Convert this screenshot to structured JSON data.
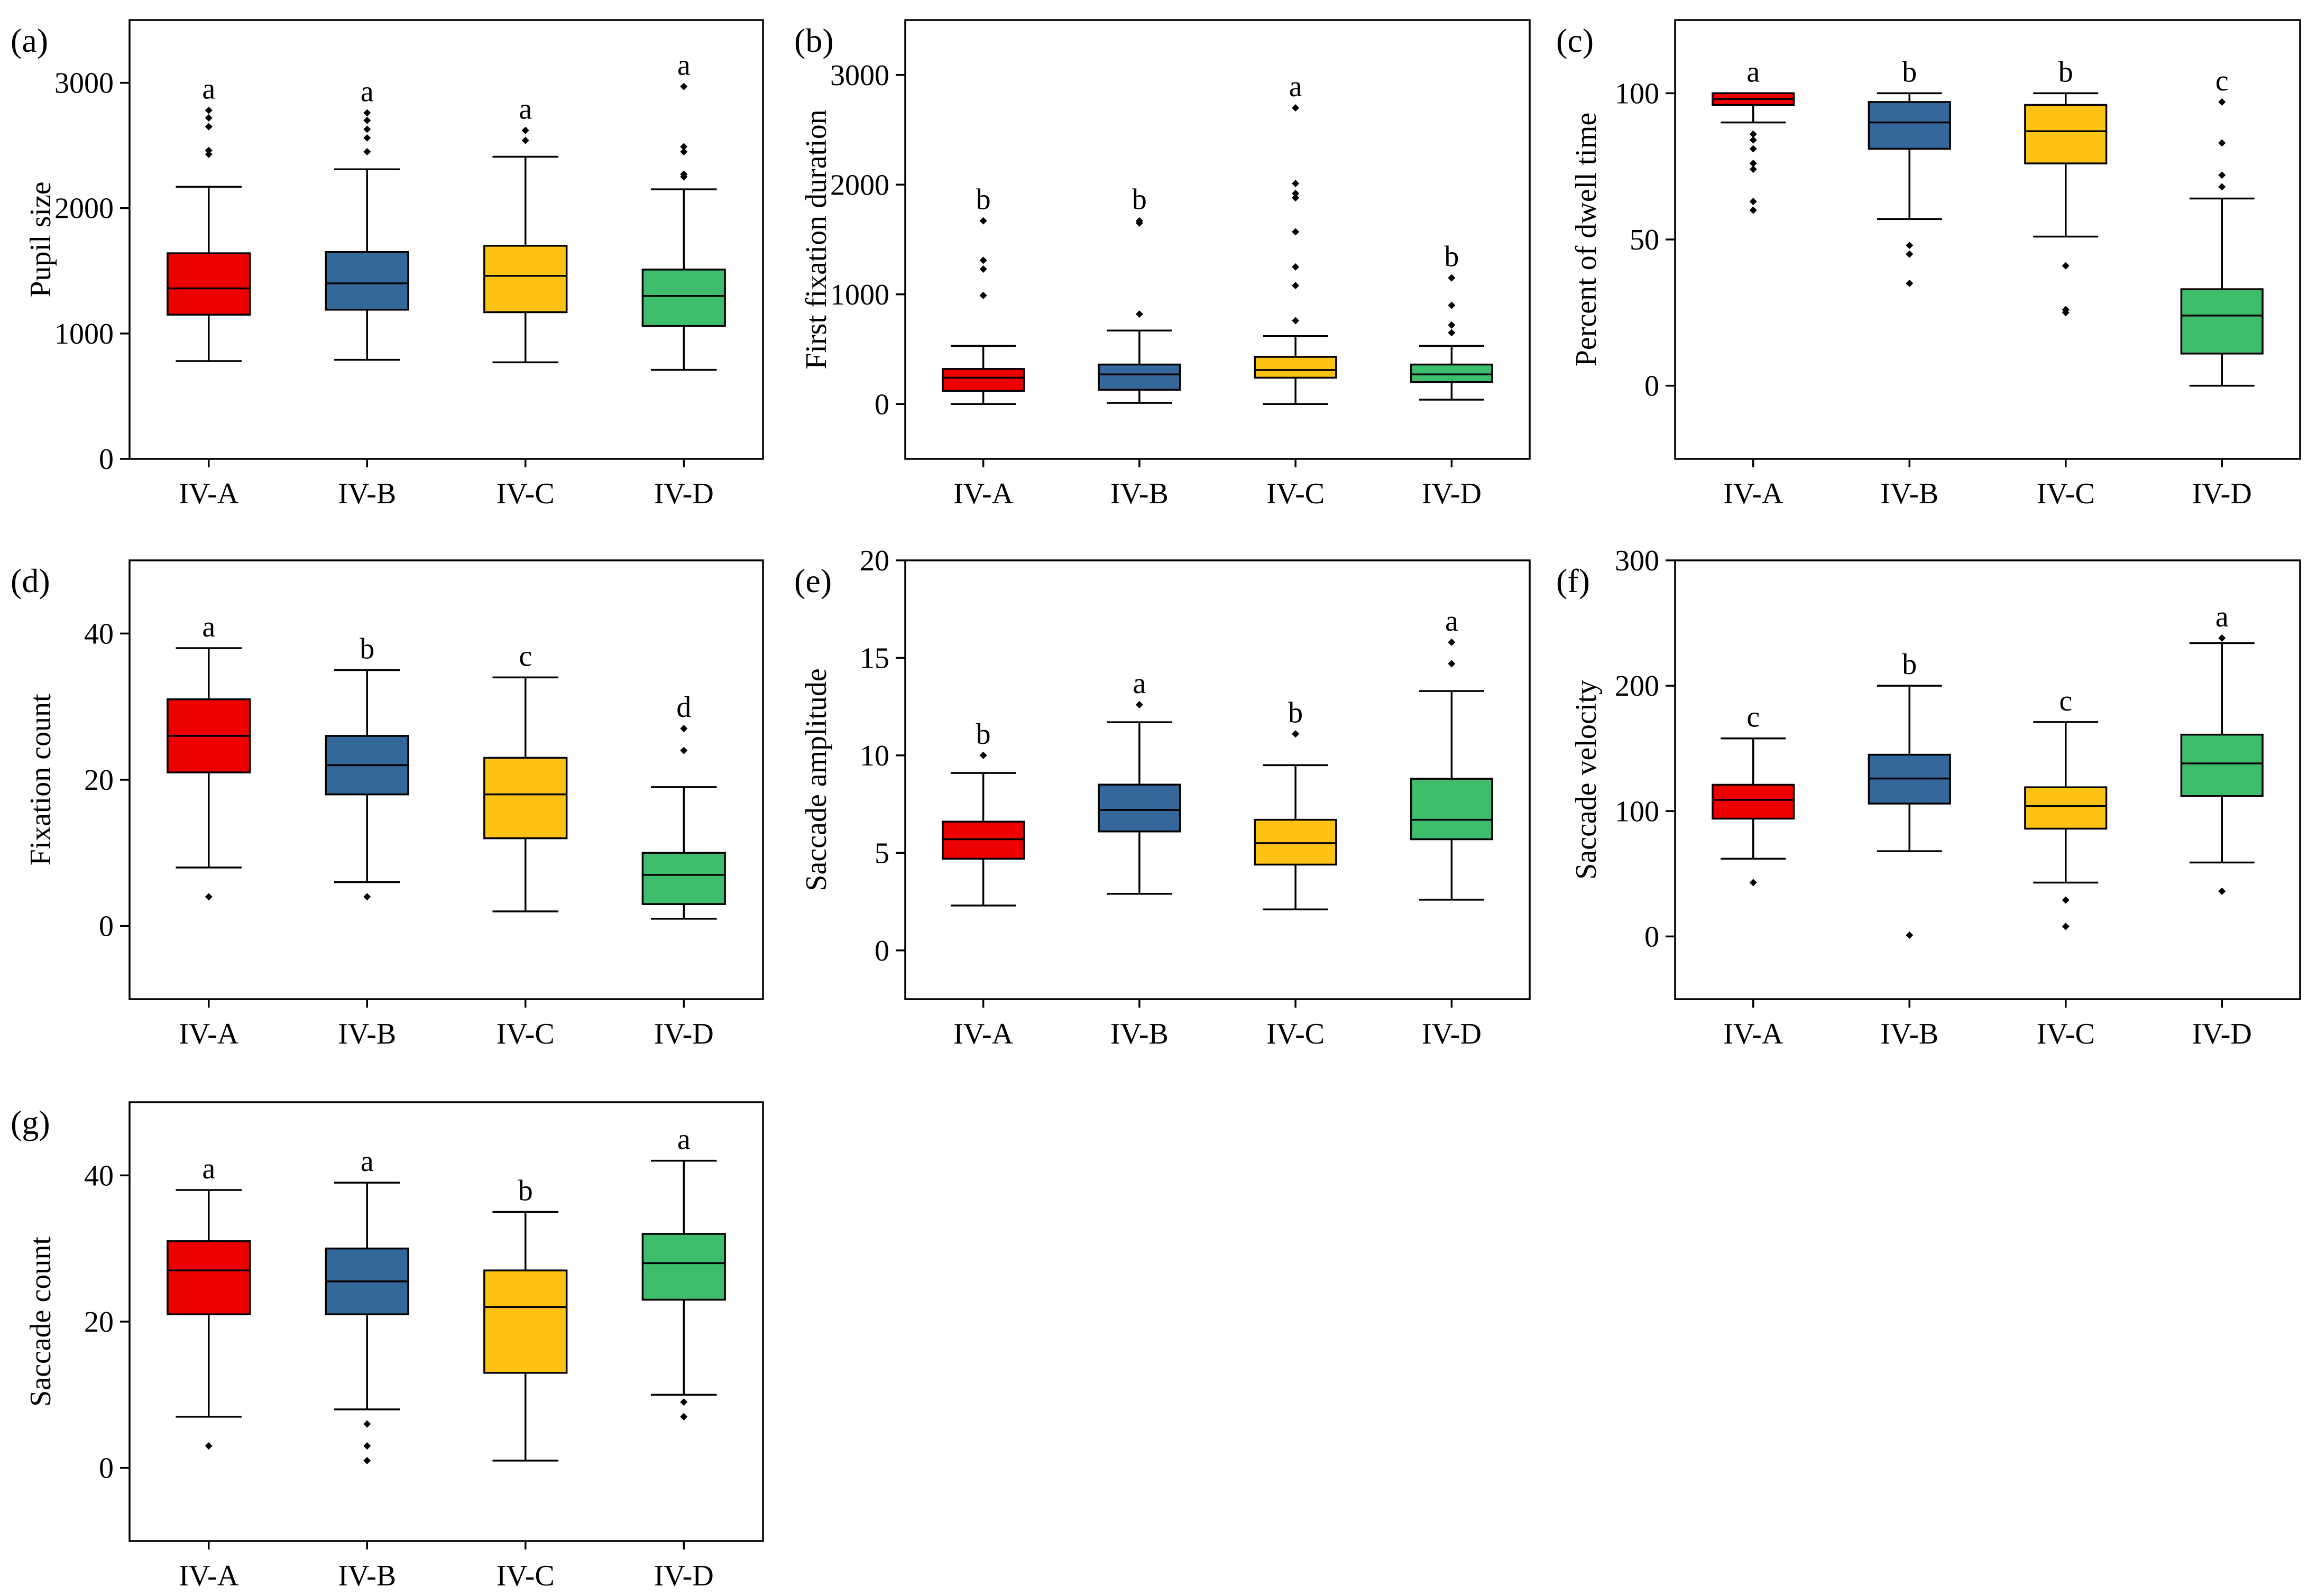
{
  "colors": {
    "IV-A": "#ee0000",
    "IV-B": "#35689a",
    "IV-C": "#fec214",
    "IV-D": "#3ebd6c"
  },
  "chart_data": [
    {
      "type": "box",
      "panel_label": "(a)",
      "ylabel": "Pupil size",
      "categories": [
        "IV-A",
        "IV-B",
        "IV-C",
        "IV-D"
      ],
      "ylim": [
        0,
        3500
      ],
      "yticks": [
        0,
        1000,
        2000,
        3000
      ],
      "boxes": [
        {
          "category": "IV-A",
          "min": 780,
          "q1": 1150,
          "median": 1360,
          "q3": 1640,
          "max": 2170,
          "outliers": [
            2430,
            2460,
            2650,
            2720,
            2780
          ],
          "sig": "a"
        },
        {
          "category": "IV-B",
          "min": 790,
          "q1": 1190,
          "median": 1400,
          "q3": 1650,
          "max": 2310,
          "outliers": [
            2450,
            2560,
            2630,
            2700,
            2760
          ],
          "sig": "a"
        },
        {
          "category": "IV-C",
          "min": 770,
          "q1": 1170,
          "median": 1460,
          "q3": 1700,
          "max": 2410,
          "outliers": [
            2540,
            2620
          ],
          "sig": "a"
        },
        {
          "category": "IV-D",
          "min": 710,
          "q1": 1060,
          "median": 1300,
          "q3": 1510,
          "max": 2150,
          "outliers": [
            2250,
            2270,
            2450,
            2490,
            2970
          ],
          "sig": "a"
        }
      ]
    },
    {
      "type": "box",
      "panel_label": "(b)",
      "ylabel": "First fixation duration",
      "categories": [
        "IV-A",
        "IV-B",
        "IV-C",
        "IV-D"
      ],
      "ylim": [
        -500,
        3500
      ],
      "yticks": [
        0,
        1000,
        2000,
        3000
      ],
      "boxes": [
        {
          "category": "IV-A",
          "min": 0,
          "q1": 120,
          "median": 240,
          "q3": 320,
          "max": 530,
          "outliers": [
            990,
            1230,
            1310,
            1670
          ],
          "sig": "b"
        },
        {
          "category": "IV-B",
          "min": 10,
          "q1": 130,
          "median": 270,
          "q3": 360,
          "max": 670,
          "outliers": [
            820,
            1650,
            1670
          ],
          "sig": "b"
        },
        {
          "category": "IV-C",
          "min": 0,
          "q1": 240,
          "median": 310,
          "q3": 430,
          "max": 620,
          "outliers": [
            760,
            1080,
            1250,
            1570,
            1880,
            1920,
            2010,
            2700
          ],
          "sig": "a"
        },
        {
          "category": "IV-D",
          "min": 40,
          "q1": 200,
          "median": 270,
          "q3": 360,
          "max": 530,
          "outliers": [
            650,
            720,
            900,
            1150
          ],
          "sig": "b"
        }
      ]
    },
    {
      "type": "box",
      "panel_label": "(c)",
      "ylabel": "Percent of dwell time",
      "categories": [
        "IV-A",
        "IV-B",
        "IV-C",
        "IV-D"
      ],
      "ylim": [
        -25,
        125
      ],
      "yticks": [
        0,
        50,
        100
      ],
      "boxes": [
        {
          "category": "IV-A",
          "min": 90,
          "q1": 96,
          "median": 98,
          "q3": 100,
          "max": 100,
          "outliers": [
            60,
            63,
            74,
            76,
            81,
            84,
            86
          ],
          "sig": "a"
        },
        {
          "category": "IV-B",
          "min": 57,
          "q1": 81,
          "median": 90,
          "q3": 97,
          "max": 100,
          "outliers": [
            35,
            45,
            48
          ],
          "sig": "b"
        },
        {
          "category": "IV-C",
          "min": 51,
          "q1": 76,
          "median": 87,
          "q3": 96,
          "max": 100,
          "outliers": [
            25,
            26,
            41
          ],
          "sig": "b"
        },
        {
          "category": "IV-D",
          "min": 0,
          "q1": 11,
          "median": 24,
          "q3": 33,
          "max": 64,
          "outliers": [
            68,
            72,
            83,
            97
          ],
          "sig": "c"
        }
      ]
    },
    {
      "type": "box",
      "panel_label": "(d)",
      "ylabel": "Fixation count",
      "categories": [
        "IV-A",
        "IV-B",
        "IV-C",
        "IV-D"
      ],
      "ylim": [
        -10,
        50
      ],
      "yticks": [
        0,
        20,
        40
      ],
      "boxes": [
        {
          "category": "IV-A",
          "min": 8,
          "q1": 21,
          "median": 26,
          "q3": 31,
          "max": 38,
          "outliers": [
            4
          ],
          "sig": "a"
        },
        {
          "category": "IV-B",
          "min": 6,
          "q1": 18,
          "median": 22,
          "q3": 26,
          "max": 35,
          "outliers": [
            4
          ],
          "sig": "b"
        },
        {
          "category": "IV-C",
          "min": 2,
          "q1": 12,
          "median": 18,
          "q3": 23,
          "max": 34,
          "outliers": [],
          "sig": "c"
        },
        {
          "category": "IV-D",
          "min": 1,
          "q1": 3,
          "median": 7,
          "q3": 10,
          "max": 19,
          "outliers": [
            24,
            27
          ],
          "sig": "d"
        }
      ]
    },
    {
      "type": "box",
      "panel_label": "(e)",
      "ylabel": "Saccade amplitude",
      "categories": [
        "IV-A",
        "IV-B",
        "IV-C",
        "IV-D"
      ],
      "ylim": [
        -2.5,
        20
      ],
      "yticks": [
        0,
        5,
        10,
        15,
        20
      ],
      "boxes": [
        {
          "category": "IV-A",
          "min": 2.3,
          "q1": 4.7,
          "median": 5.7,
          "q3": 6.6,
          "max": 9.1,
          "outliers": [
            10.0
          ],
          "sig": "b"
        },
        {
          "category": "IV-B",
          "min": 2.9,
          "q1": 6.1,
          "median": 7.2,
          "q3": 8.5,
          "max": 11.7,
          "outliers": [
            12.6
          ],
          "sig": "a"
        },
        {
          "category": "IV-C",
          "min": 2.1,
          "q1": 4.4,
          "median": 5.5,
          "q3": 6.7,
          "max": 9.5,
          "outliers": [
            11.1
          ],
          "sig": "b"
        },
        {
          "category": "IV-D",
          "min": 2.6,
          "q1": 5.7,
          "median": 6.7,
          "q3": 8.8,
          "max": 13.3,
          "outliers": [
            14.7,
            15.8
          ],
          "sig": "a"
        }
      ]
    },
    {
      "type": "box",
      "panel_label": "(f)",
      "ylabel": "Saccade velocity",
      "categories": [
        "IV-A",
        "IV-B",
        "IV-C",
        "IV-D"
      ],
      "ylim": [
        -50,
        300
      ],
      "yticks": [
        0,
        100,
        200,
        300
      ],
      "boxes": [
        {
          "category": "IV-A",
          "min": 62,
          "q1": 94,
          "median": 109,
          "q3": 121,
          "max": 158,
          "outliers": [
            43
          ],
          "sig": "c"
        },
        {
          "category": "IV-B",
          "min": 68,
          "q1": 106,
          "median": 126,
          "q3": 145,
          "max": 200,
          "outliers": [
            1
          ],
          "sig": "b"
        },
        {
          "category": "IV-C",
          "min": 43,
          "q1": 86,
          "median": 104,
          "q3": 119,
          "max": 171,
          "outliers": [
            8,
            29
          ],
          "sig": "c"
        },
        {
          "category": "IV-D",
          "min": 59,
          "q1": 112,
          "median": 138,
          "q3": 161,
          "max": 234,
          "outliers": [
            36,
            238
          ],
          "sig": "a"
        }
      ]
    },
    {
      "type": "box",
      "panel_label": "(g)",
      "ylabel": "Saccade count",
      "categories": [
        "IV-A",
        "IV-B",
        "IV-C",
        "IV-D"
      ],
      "ylim": [
        -10,
        50
      ],
      "yticks": [
        0,
        20,
        40
      ],
      "boxes": [
        {
          "category": "IV-A",
          "min": 7,
          "q1": 21,
          "median": 27,
          "q3": 31,
          "max": 38,
          "outliers": [
            3
          ],
          "sig": "a"
        },
        {
          "category": "IV-B",
          "min": 8,
          "q1": 21,
          "median": 25.5,
          "q3": 30,
          "max": 39,
          "outliers": [
            1,
            3,
            6
          ],
          "sig": "a"
        },
        {
          "category": "IV-C",
          "min": 1,
          "q1": 13,
          "median": 22,
          "q3": 27,
          "max": 35,
          "outliers": [],
          "sig": "b"
        },
        {
          "category": "IV-D",
          "min": 10,
          "q1": 23,
          "median": 28,
          "q3": 32,
          "max": 42,
          "outliers": [
            7,
            9
          ],
          "sig": "a"
        }
      ]
    }
  ]
}
